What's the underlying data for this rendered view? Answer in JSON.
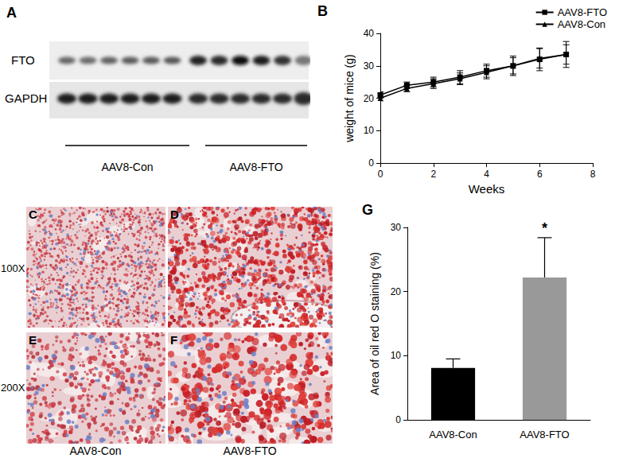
{
  "chart_data": [
    {
      "type": "line",
      "title": "B",
      "x": [
        0,
        1,
        2,
        3,
        4,
        5,
        6,
        7
      ],
      "series": [
        {
          "name": "AAV8-FTO",
          "color": "#000000",
          "marker": "square",
          "values": [
            21,
            24,
            25,
            26.5,
            28.5,
            30,
            32,
            33.5
          ],
          "errors": [
            1,
            1,
            1.5,
            2,
            2,
            3,
            3.5,
            4
          ]
        },
        {
          "name": "AAV8-Con",
          "color": "#000000",
          "marker": "triangle",
          "values": [
            20,
            23,
            24.5,
            26,
            28,
            30,
            32.3,
            33.5
          ],
          "errors": [
            0.8,
            1,
            1.5,
            1.8,
            2,
            2.5,
            3,
            3
          ]
        }
      ],
      "x_label": "Weeks",
      "y_label": "weight of mice (g)",
      "xlim": [
        0,
        8
      ],
      "xticks": [
        0,
        2,
        4,
        6,
        8
      ],
      "ylim": [
        0,
        40
      ],
      "yticks": [
        0,
        10,
        20,
        30,
        40
      ],
      "grid": false,
      "legend": "upper right"
    },
    {
      "type": "bar",
      "title": "G",
      "categories": [
        "AAV8-Con",
        "AAV8-FTO"
      ],
      "values": [
        8.1,
        22.2
      ],
      "errors": [
        1.4,
        6.2
      ],
      "colors": [
        "#000000",
        "#999999"
      ],
      "y_label": "Area of oil red O staining (%)",
      "ylim": [
        0,
        30
      ],
      "yticks": [
        0,
        10,
        20,
        30
      ],
      "grid": false,
      "annotations": [
        {
          "text": "*",
          "x": "AAV8-FTO"
        }
      ]
    }
  ],
  "western_blot": {
    "panel": "A",
    "rows": [
      "FTO",
      "GAPDH"
    ],
    "groups": [
      "AAV8-Con",
      "AAV8-FTO"
    ]
  },
  "histology": {
    "panels": [
      "C",
      "D",
      "E",
      "F"
    ],
    "row_labels": [
      "100X",
      "200X"
    ],
    "column_labels": [
      "AAV8-Con",
      "AAV8-FTO"
    ]
  }
}
